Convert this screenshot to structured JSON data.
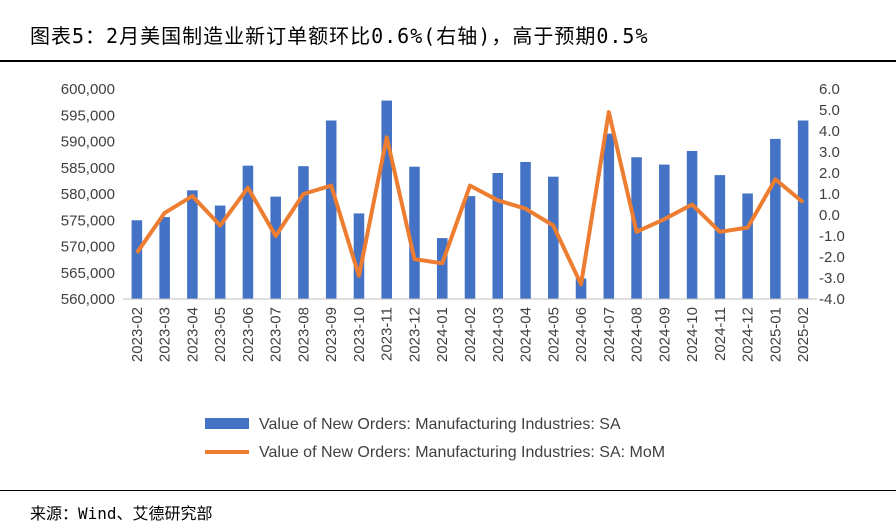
{
  "header": {
    "title": "图表5：2月美国制造业新订单额环比0.6%(右轴)，高于预期0.5%"
  },
  "footer": {
    "source": "来源：Wind、艾德研究部"
  },
  "chart_data": {
    "type": "bar",
    "categories": [
      "2023-02",
      "2023-03",
      "2023-04",
      "2023-05",
      "2023-06",
      "2023-07",
      "2023-08",
      "2023-09",
      "2023-10",
      "2023-11",
      "2023-12",
      "2024-01",
      "2024-02",
      "2024-03",
      "2024-04",
      "2024-05",
      "2024-06",
      "2024-07",
      "2024-08",
      "2024-09",
      "2024-10",
      "2024-11",
      "2024-12",
      "2025-01",
      "2025-02"
    ],
    "series": [
      {
        "name": "Value of New Orders: Manufacturing Industries: SA",
        "type": "bar",
        "axis": "left",
        "color": "#4472C4",
        "values": [
          575000,
          575600,
          580700,
          577800,
          585400,
          579500,
          585300,
          594000,
          576300,
          597800,
          585200,
          571600,
          579600,
          584000,
          586100,
          583300,
          563900,
          591500,
          587000,
          585600,
          588200,
          583600,
          580100,
          590500,
          594000
        ]
      },
      {
        "name": "Value of New Orders: Manufacturing Industries: SA: MoM",
        "type": "line",
        "axis": "right",
        "color": "#ED7D31",
        "values": [
          -1.8,
          0.1,
          0.9,
          -0.5,
          1.3,
          -1.0,
          1.0,
          1.4,
          -2.9,
          3.7,
          -2.1,
          -2.3,
          1.4,
          0.7,
          0.3,
          -0.5,
          -3.3,
          4.9,
          -0.8,
          -0.2,
          0.5,
          -0.8,
          -0.6,
          1.7,
          0.6
        ]
      }
    ],
    "y_left": {
      "min": 560000,
      "max": 600000,
      "ticks": [
        "560,000",
        "565,000",
        "570,000",
        "575,000",
        "580,000",
        "585,000",
        "590,000",
        "595,000",
        "600,000"
      ]
    },
    "y_right": {
      "min": -4.0,
      "max": 6.0,
      "ticks": [
        "-4.0",
        "-3.0",
        "-2.0",
        "-1.0",
        "0.0",
        "1.0",
        "2.0",
        "3.0",
        "4.0",
        "5.0",
        "6.0"
      ]
    },
    "legend_position": "bottom",
    "grid": false
  }
}
